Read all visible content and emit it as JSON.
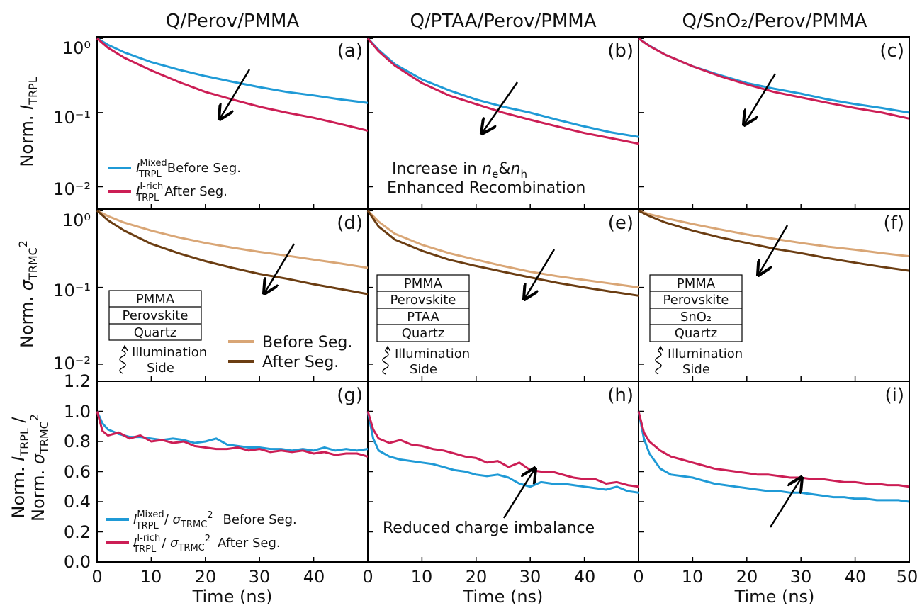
{
  "columns": [
    {
      "title": "Q/Perov/PMMA"
    },
    {
      "title": "Q/PTAA/Perov/PMMA"
    },
    {
      "title": "Q/SnO₂/Perov/PMMA"
    }
  ],
  "colors": {
    "blue": "#1f9ad6",
    "red": "#cc1e55",
    "light_brown": "#d9a676",
    "dark_brown": "#6b3d12",
    "arrow": "#000000"
  },
  "rows": [
    {
      "ylabel": "Norm. I_TRPL",
      "yscale": "log",
      "ylim": [
        0.005,
        1.05
      ],
      "yticks": [
        "10⁰",
        "10⁻¹",
        "10⁻²"
      ]
    },
    {
      "ylabel": "Norm. σ_TRMC²",
      "yscale": "log",
      "ylim": [
        0.006,
        1.05
      ],
      "yticks": [
        "10⁰",
        "10⁻¹",
        "10⁻²"
      ]
    },
    {
      "ylabel": "Norm. I_TRPL / Norm. σ_TRMC²",
      "yscale": "linear",
      "ylim": [
        0,
        1.2
      ],
      "yticks": [
        "0.0",
        "0.2",
        "0.4",
        "0.6",
        "0.8",
        "1.0",
        "1.2"
      ]
    }
  ],
  "xaxis": {
    "label": "Time (ns)",
    "xlim": [
      0,
      50
    ],
    "ticks": [
      "0",
      "10",
      "20",
      "30",
      "40",
      "50"
    ]
  },
  "legends": {
    "trpl_before": "Before Seg.",
    "trpl_after": "After Seg.",
    "trpl_before_sup": "Mixed",
    "trpl_after_sup": "I-rich",
    "trmc_before": "Before Seg.",
    "trmc_after": "After Seg.",
    "ratio_before": "Before Seg.",
    "ratio_after": "After Seg."
  },
  "annotations": {
    "increase": "Increase in",
    "enhanced": "Enhanced Recombination",
    "reduced": "Reduced charge imbalance",
    "illumination": "Illumination",
    "side": "Side"
  },
  "stacks": {
    "d": [
      "PMMA",
      "Perovskite",
      "Quartz"
    ],
    "e": [
      "PMMA",
      "Perovskite",
      "PTAA",
      "Quartz"
    ],
    "f": [
      "PMMA",
      "Perovskite",
      "SnO₂",
      "Quartz"
    ]
  },
  "chart_data": [
    {
      "panel": "(a)",
      "type": "line",
      "yscale": "log",
      "series": [
        {
          "name": "I_TRPL^Mixed Before Seg.",
          "color": "#1f9ad6",
          "x": [
            0,
            2,
            5,
            10,
            15,
            20,
            25,
            30,
            35,
            40,
            45,
            50
          ],
          "y": [
            1.0,
            0.82,
            0.65,
            0.48,
            0.38,
            0.31,
            0.26,
            0.22,
            0.19,
            0.17,
            0.15,
            0.135
          ]
        },
        {
          "name": "I_TRPL^I-rich After Seg.",
          "color": "#cc1e55",
          "x": [
            0,
            2,
            5,
            10,
            15,
            20,
            25,
            30,
            35,
            40,
            45,
            50
          ],
          "y": [
            1.0,
            0.75,
            0.55,
            0.37,
            0.26,
            0.19,
            0.15,
            0.12,
            0.1,
            0.085,
            0.07,
            0.057
          ]
        }
      ]
    },
    {
      "panel": "(b)",
      "type": "line",
      "yscale": "log",
      "series": [
        {
          "name": "Before Seg.",
          "color": "#1f9ad6",
          "x": [
            0,
            2,
            5,
            10,
            15,
            20,
            25,
            30,
            35,
            40,
            45,
            50
          ],
          "y": [
            1.0,
            0.7,
            0.45,
            0.28,
            0.2,
            0.15,
            0.12,
            0.1,
            0.08,
            0.065,
            0.054,
            0.047
          ]
        },
        {
          "name": "After Seg.",
          "color": "#cc1e55",
          "x": [
            0,
            2,
            5,
            10,
            15,
            20,
            25,
            30,
            35,
            40,
            45,
            50
          ],
          "y": [
            1.0,
            0.67,
            0.43,
            0.25,
            0.17,
            0.13,
            0.1,
            0.08,
            0.065,
            0.053,
            0.045,
            0.038
          ]
        }
      ]
    },
    {
      "panel": "(c)",
      "type": "line",
      "yscale": "log",
      "series": [
        {
          "name": "Before Seg.",
          "color": "#1f9ad6",
          "x": [
            0,
            2,
            5,
            10,
            15,
            20,
            25,
            30,
            35,
            40,
            45,
            50
          ],
          "y": [
            1.0,
            0.8,
            0.6,
            0.42,
            0.32,
            0.25,
            0.21,
            0.18,
            0.15,
            0.13,
            0.115,
            0.1
          ]
        },
        {
          "name": "After Seg.",
          "color": "#cc1e55",
          "x": [
            0,
            2,
            5,
            10,
            15,
            20,
            25,
            30,
            35,
            40,
            45,
            50
          ],
          "y": [
            1.0,
            0.79,
            0.6,
            0.42,
            0.31,
            0.24,
            0.19,
            0.16,
            0.135,
            0.115,
            0.1,
            0.083
          ]
        }
      ]
    },
    {
      "panel": "(d)",
      "type": "line",
      "yscale": "log",
      "series": [
        {
          "name": "Before Seg.",
          "color": "#d9a676",
          "x": [
            0,
            2,
            5,
            10,
            15,
            20,
            25,
            30,
            35,
            40,
            45,
            50
          ],
          "y": [
            1.0,
            0.85,
            0.7,
            0.55,
            0.45,
            0.38,
            0.33,
            0.29,
            0.26,
            0.23,
            0.205,
            0.18
          ]
        },
        {
          "name": "After Seg.",
          "color": "#6b3d12",
          "x": [
            0,
            2,
            5,
            10,
            15,
            20,
            25,
            30,
            35,
            40,
            45,
            50
          ],
          "y": [
            1.0,
            0.75,
            0.55,
            0.37,
            0.28,
            0.22,
            0.18,
            0.15,
            0.13,
            0.11,
            0.095,
            0.082
          ]
        }
      ]
    },
    {
      "panel": "(e)",
      "type": "line",
      "yscale": "log",
      "series": [
        {
          "name": "Before Seg.",
          "color": "#d9a676",
          "x": [
            0,
            2,
            5,
            10,
            15,
            20,
            25,
            30,
            35,
            40,
            45,
            50
          ],
          "y": [
            1.0,
            0.72,
            0.5,
            0.36,
            0.28,
            0.23,
            0.19,
            0.16,
            0.14,
            0.125,
            0.112,
            0.1
          ]
        },
        {
          "name": "After Seg.",
          "color": "#6b3d12",
          "x": [
            0,
            2,
            5,
            10,
            15,
            20,
            25,
            30,
            35,
            40,
            45,
            50
          ],
          "y": [
            1.0,
            0.62,
            0.42,
            0.3,
            0.23,
            0.19,
            0.16,
            0.135,
            0.115,
            0.1,
            0.088,
            0.078
          ]
        }
      ]
    },
    {
      "panel": "(f)",
      "type": "line",
      "yscale": "log",
      "series": [
        {
          "name": "Before Seg.",
          "color": "#d9a676",
          "x": [
            0,
            2,
            5,
            10,
            15,
            20,
            25,
            30,
            35,
            40,
            45,
            50
          ],
          "y": [
            1.0,
            0.9,
            0.8,
            0.67,
            0.57,
            0.49,
            0.43,
            0.38,
            0.34,
            0.31,
            0.28,
            0.255
          ]
        },
        {
          "name": "After Seg.",
          "color": "#6b3d12",
          "x": [
            0,
            2,
            5,
            10,
            15,
            20,
            25,
            30,
            35,
            40,
            45,
            50
          ],
          "y": [
            1.0,
            0.85,
            0.7,
            0.55,
            0.45,
            0.38,
            0.32,
            0.28,
            0.24,
            0.21,
            0.185,
            0.165
          ]
        }
      ]
    },
    {
      "panel": "(g)",
      "type": "line",
      "yscale": "linear",
      "series": [
        {
          "name": "I_TRPL^Mixed / sigma_TRMC^2 Before Seg.",
          "color": "#1f9ad6",
          "x": [
            0,
            1,
            2,
            4,
            6,
            8,
            10,
            12,
            14,
            16,
            18,
            20,
            22,
            24,
            26,
            28,
            30,
            32,
            34,
            36,
            38,
            40,
            42,
            44,
            46,
            48,
            50
          ],
          "y": [
            1.0,
            0.92,
            0.88,
            0.85,
            0.83,
            0.83,
            0.82,
            0.81,
            0.82,
            0.81,
            0.79,
            0.8,
            0.82,
            0.78,
            0.77,
            0.76,
            0.76,
            0.75,
            0.75,
            0.74,
            0.75,
            0.74,
            0.76,
            0.74,
            0.75,
            0.74,
            0.75
          ]
        },
        {
          "name": "I_TRPL^I-rich / sigma_TRMC^2 After Seg.",
          "color": "#cc1e55",
          "x": [
            0,
            1,
            2,
            4,
            6,
            8,
            10,
            12,
            14,
            16,
            18,
            20,
            22,
            24,
            26,
            28,
            30,
            32,
            34,
            36,
            38,
            40,
            42,
            44,
            46,
            48,
            50
          ],
          "y": [
            1.0,
            0.87,
            0.84,
            0.86,
            0.82,
            0.84,
            0.8,
            0.81,
            0.79,
            0.8,
            0.77,
            0.76,
            0.75,
            0.75,
            0.76,
            0.74,
            0.75,
            0.73,
            0.74,
            0.73,
            0.74,
            0.72,
            0.73,
            0.71,
            0.72,
            0.72,
            0.7
          ]
        }
      ]
    },
    {
      "panel": "(h)",
      "type": "line",
      "yscale": "linear",
      "series": [
        {
          "name": "Before Seg.",
          "color": "#1f9ad6",
          "x": [
            0,
            1,
            2,
            4,
            6,
            8,
            10,
            12,
            14,
            16,
            18,
            20,
            22,
            24,
            26,
            28,
            30,
            32,
            34,
            36,
            38,
            40,
            42,
            44,
            46,
            48,
            50
          ],
          "y": [
            1.0,
            0.82,
            0.74,
            0.7,
            0.68,
            0.67,
            0.66,
            0.65,
            0.63,
            0.61,
            0.6,
            0.58,
            0.57,
            0.58,
            0.56,
            0.52,
            0.5,
            0.53,
            0.52,
            0.52,
            0.51,
            0.5,
            0.49,
            0.48,
            0.5,
            0.47,
            0.46
          ]
        },
        {
          "name": "After Seg.",
          "color": "#cc1e55",
          "x": [
            0,
            1,
            2,
            4,
            6,
            8,
            10,
            12,
            14,
            16,
            18,
            20,
            22,
            24,
            26,
            28,
            30,
            32,
            34,
            36,
            38,
            40,
            42,
            44,
            46,
            48,
            50
          ],
          "y": [
            1.0,
            0.88,
            0.82,
            0.79,
            0.81,
            0.78,
            0.77,
            0.75,
            0.74,
            0.72,
            0.7,
            0.69,
            0.66,
            0.67,
            0.63,
            0.66,
            0.61,
            0.6,
            0.6,
            0.58,
            0.56,
            0.55,
            0.55,
            0.52,
            0.53,
            0.51,
            0.5
          ]
        }
      ]
    },
    {
      "panel": "(i)",
      "type": "line",
      "yscale": "linear",
      "series": [
        {
          "name": "Before Seg.",
          "color": "#1f9ad6",
          "x": [
            0,
            1,
            2,
            4,
            6,
            8,
            10,
            12,
            14,
            16,
            18,
            20,
            22,
            24,
            26,
            28,
            30,
            32,
            34,
            36,
            38,
            40,
            42,
            44,
            46,
            48,
            50
          ],
          "y": [
            1.0,
            0.82,
            0.72,
            0.62,
            0.58,
            0.57,
            0.56,
            0.54,
            0.52,
            0.51,
            0.5,
            0.49,
            0.48,
            0.47,
            0.47,
            0.46,
            0.46,
            0.45,
            0.44,
            0.43,
            0.43,
            0.42,
            0.42,
            0.41,
            0.41,
            0.41,
            0.4
          ]
        },
        {
          "name": "After Seg.",
          "color": "#cc1e55",
          "x": [
            0,
            1,
            2,
            4,
            6,
            8,
            10,
            12,
            14,
            16,
            18,
            20,
            22,
            24,
            26,
            28,
            30,
            32,
            34,
            36,
            38,
            40,
            42,
            44,
            46,
            48,
            50
          ],
          "y": [
            1.0,
            0.86,
            0.8,
            0.74,
            0.7,
            0.68,
            0.66,
            0.64,
            0.62,
            0.61,
            0.6,
            0.59,
            0.58,
            0.58,
            0.57,
            0.56,
            0.56,
            0.55,
            0.55,
            0.54,
            0.53,
            0.53,
            0.52,
            0.52,
            0.51,
            0.51,
            0.5
          ]
        }
      ]
    }
  ]
}
